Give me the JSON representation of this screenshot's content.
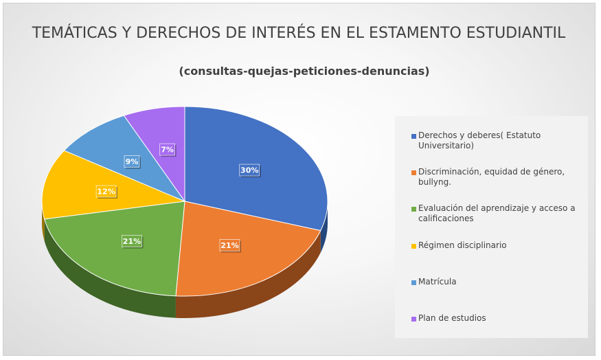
{
  "chart_data": {
    "type": "pie",
    "title": "TEMÁTICAS Y DERECHOS DE INTERÉS EN EL ESTAMENTO ESTUDIANTIL",
    "subtitle": "(consultas-quejas-peticiones-denuncias)",
    "legend_position": "right",
    "slices": [
      {
        "label": "Derechos y deberes( Estatuto Universitario)",
        "value": 30,
        "value_label": "30%",
        "color": "#4472C4",
        "dark": "#24487E"
      },
      {
        "label": "Discriminación, equidad de género, bullyng.",
        "value": 21,
        "value_label": "21%",
        "color": "#ED7D31",
        "dark": "#8A4519"
      },
      {
        "label": "Evaluación del aprendizaje y acceso a calificaciones",
        "value": 21,
        "value_label": "21%",
        "color": "#70AD47",
        "dark": "#3E6426"
      },
      {
        "label": "Régimen disciplinario",
        "value": 12,
        "value_label": "12%",
        "color": "#FFC000",
        "dark": "#9A7400"
      },
      {
        "label": "Matrícula",
        "value": 9,
        "value_label": "9%",
        "color": "#5B9BD5",
        "dark": "#2F5F8C"
      },
      {
        "label": "Plan de estudios",
        "value": 7,
        "value_label": "7%",
        "color": "#A66DF0",
        "dark": "#5E3A8E"
      }
    ]
  }
}
